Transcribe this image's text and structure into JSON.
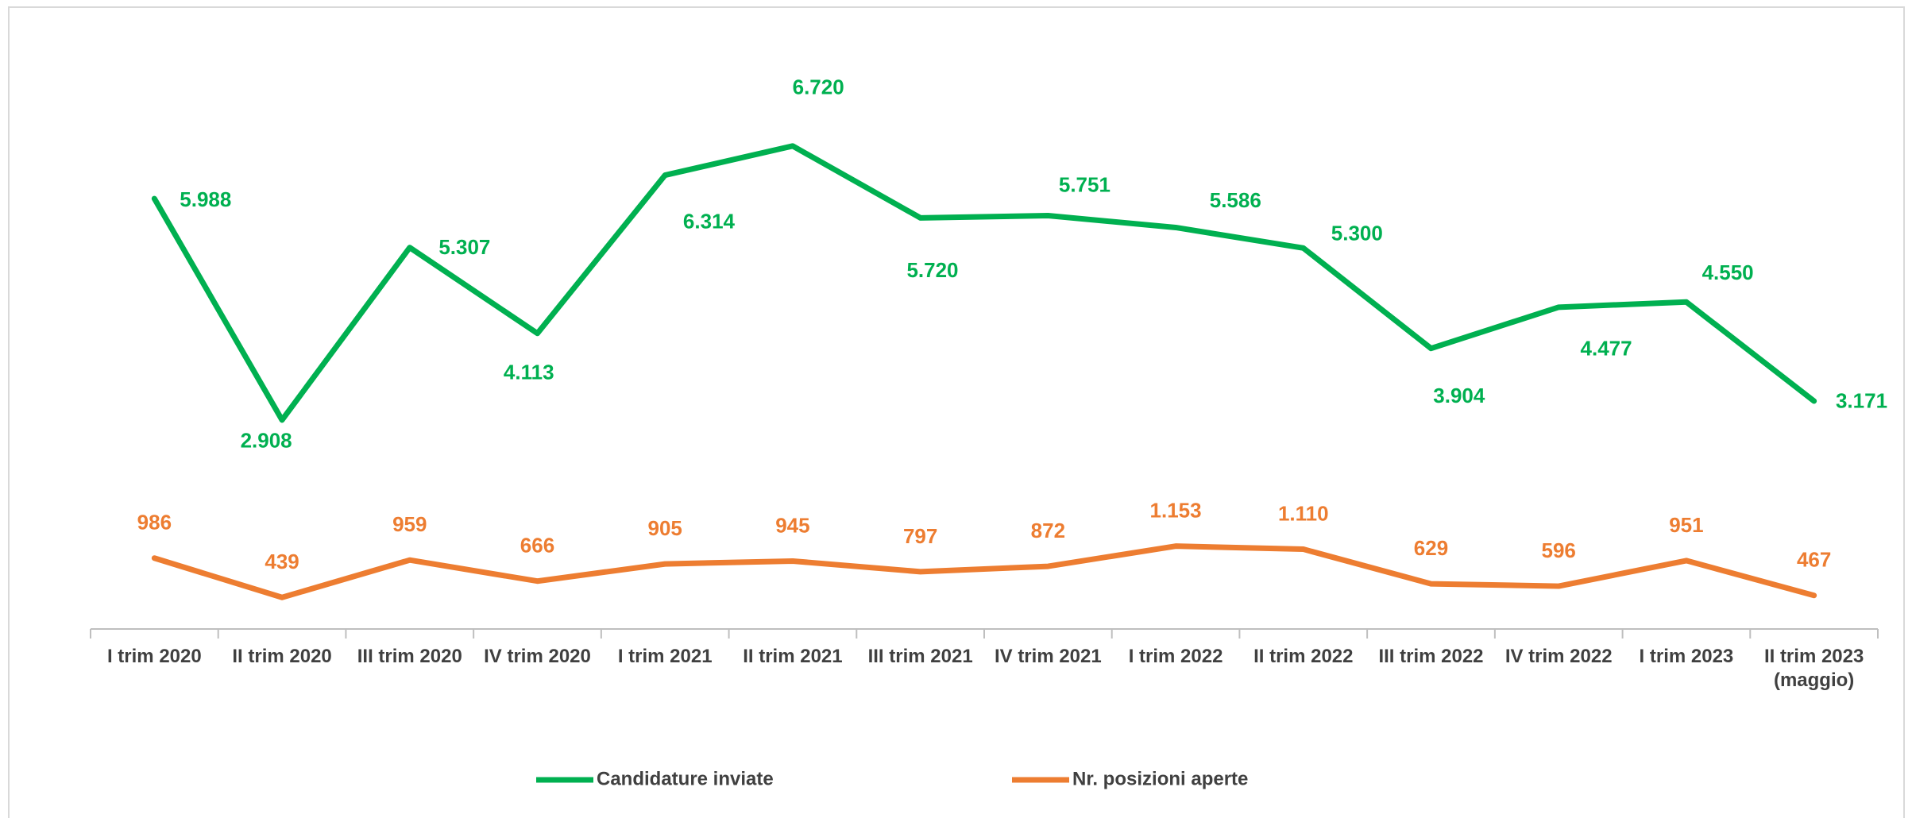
{
  "chart_data": {
    "type": "line",
    "categories": [
      "I trim 2020",
      "II trim 2020",
      "III trim 2020",
      "IV trim 2020",
      "I trim 2021",
      "II trim 2021",
      "III trim 2021",
      "IV trim 2021",
      "I trim 2022",
      "II trim 2022",
      "III trim 2022",
      "IV trim 2022",
      "I trim 2023",
      "II trim 2023\n(maggio)"
    ],
    "series": [
      {
        "name": "Candidature inviate",
        "color": "#00b050",
        "values": [
          5988,
          2908,
          5307,
          4113,
          6314,
          6720,
          5720,
          5751,
          5586,
          5300,
          3904,
          4477,
          4550,
          3171
        ],
        "value_labels": [
          "5.988",
          "2.908",
          "5.307",
          "4.113",
          "6.314",
          "6.720",
          "5.720",
          "5.751",
          "5.586",
          "5.300",
          "3.904",
          "4.477",
          "4.550",
          "3.171"
        ]
      },
      {
        "name": "Nr. posizioni aperte",
        "color": "#ed7d31",
        "values": [
          986,
          439,
          959,
          666,
          905,
          945,
          797,
          872,
          1153,
          1110,
          629,
          596,
          951,
          467
        ],
        "value_labels": [
          "986",
          "439",
          "959",
          "666",
          "905",
          "945",
          "797",
          "872",
          "1.153",
          "1.110",
          "629",
          "596",
          "951",
          "467"
        ]
      }
    ],
    "ylim": [
      0,
      8000
    ],
    "legend": "bottom"
  }
}
